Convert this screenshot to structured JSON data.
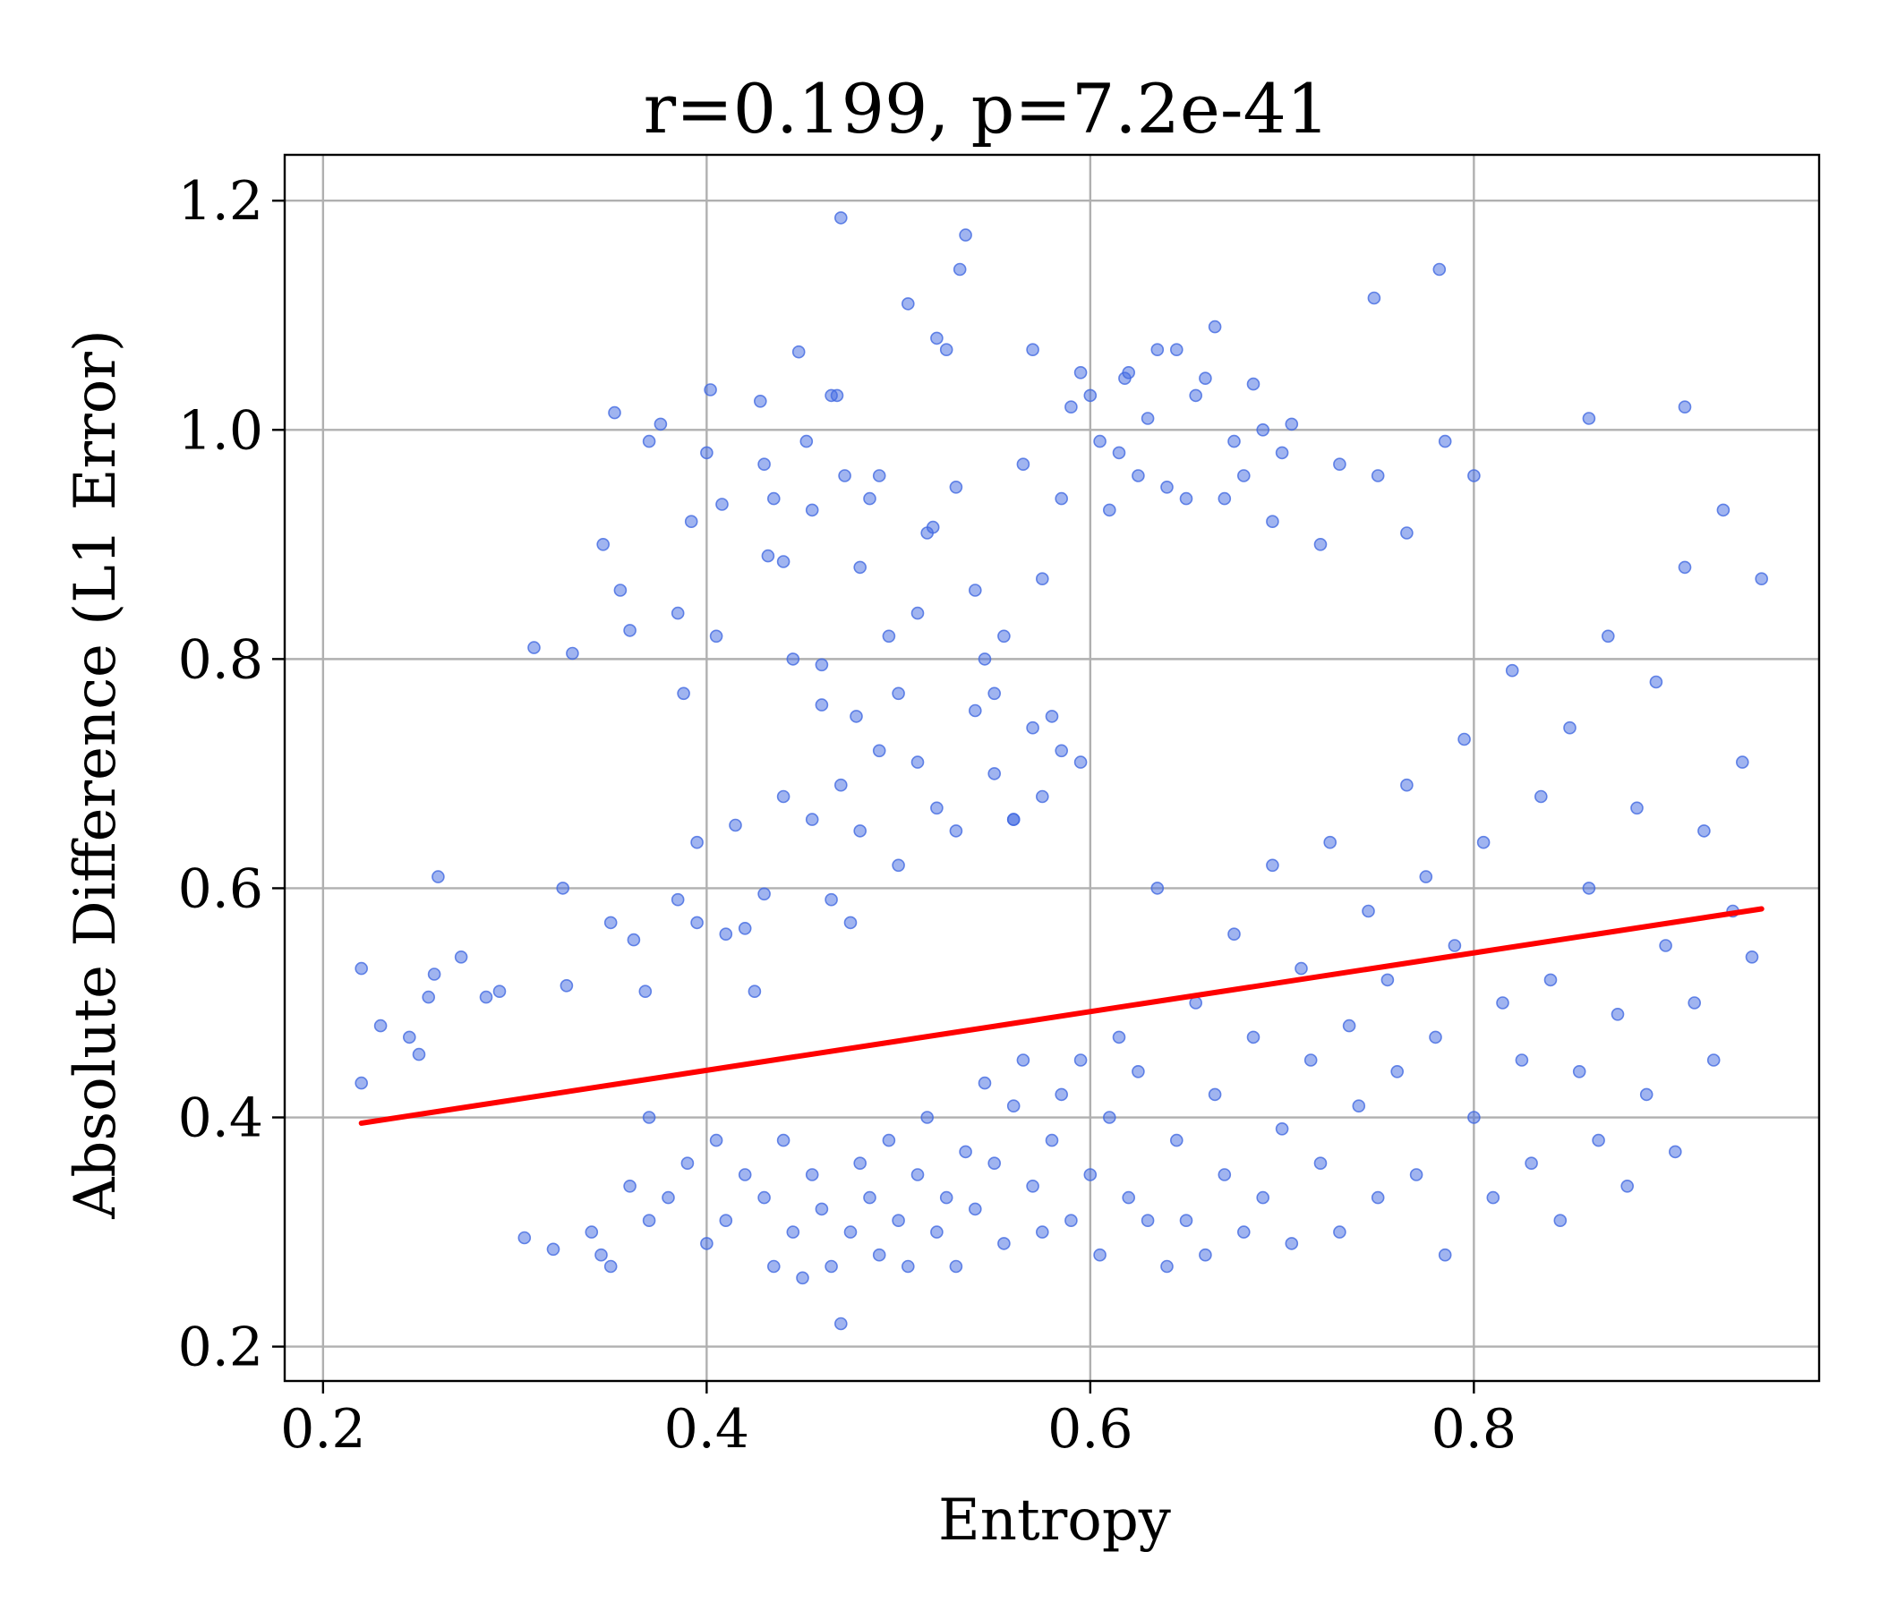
{
  "chart_data": {
    "type": "scatter",
    "title": "r=0.199, p=7.2e-41",
    "xlabel": "Entropy",
    "ylabel": "Absolute Difference (L1 Error)",
    "xlim": [
      0.18,
      0.98
    ],
    "ylim": [
      0.17,
      1.24
    ],
    "xticks": [
      0.2,
      0.4,
      0.6,
      0.8
    ],
    "xtick_labels": [
      "0.2",
      "0.4",
      "0.6",
      "0.8"
    ],
    "yticks": [
      0.2,
      0.4,
      0.6,
      0.8,
      1.0,
      1.2
    ],
    "ytick_labels": [
      "0.2",
      "0.4",
      "0.6",
      "0.8",
      "1.0",
      "1.2"
    ],
    "grid": true,
    "colors": {
      "points": "#4169e1",
      "fit_line": "#ff0000"
    },
    "fit_line": {
      "x": [
        0.22,
        0.95
      ],
      "y": [
        0.395,
        0.582
      ]
    },
    "series": [
      {
        "points": [
          [
            0.22,
            0.53
          ],
          [
            0.22,
            0.43
          ],
          [
            0.23,
            0.48
          ],
          [
            0.245,
            0.47
          ],
          [
            0.25,
            0.455
          ],
          [
            0.255,
            0.505
          ],
          [
            0.258,
            0.525
          ],
          [
            0.26,
            0.61
          ],
          [
            0.272,
            0.54
          ],
          [
            0.285,
            0.505
          ],
          [
            0.292,
            0.51
          ],
          [
            0.31,
            0.81
          ],
          [
            0.33,
            0.805
          ],
          [
            0.325,
            0.6
          ],
          [
            0.327,
            0.515
          ],
          [
            0.305,
            0.295
          ],
          [
            0.32,
            0.285
          ],
          [
            0.345,
            0.28
          ],
          [
            0.35,
            0.57
          ],
          [
            0.355,
            0.86
          ],
          [
            0.36,
            0.825
          ],
          [
            0.362,
            0.555
          ],
          [
            0.368,
            0.51
          ],
          [
            0.346,
            0.9
          ],
          [
            0.352,
            1.015
          ],
          [
            0.37,
            0.99
          ],
          [
            0.376,
            1.005
          ],
          [
            0.385,
            0.84
          ],
          [
            0.388,
            0.77
          ],
          [
            0.392,
            0.92
          ],
          [
            0.395,
            0.64
          ],
          [
            0.4,
            0.98
          ],
          [
            0.402,
            1.035
          ],
          [
            0.405,
            0.82
          ],
          [
            0.408,
            0.935
          ],
          [
            0.415,
            0.655
          ],
          [
            0.42,
            0.565
          ],
          [
            0.425,
            0.51
          ],
          [
            0.428,
            1.025
          ],
          [
            0.43,
            0.97
          ],
          [
            0.432,
            0.89
          ],
          [
            0.435,
            0.94
          ],
          [
            0.44,
            0.885
          ],
          [
            0.445,
            0.8
          ],
          [
            0.448,
            1.068
          ],
          [
            0.452,
            0.99
          ],
          [
            0.455,
            0.93
          ],
          [
            0.46,
            0.795
          ],
          [
            0.465,
            1.03
          ],
          [
            0.468,
            1.03
          ],
          [
            0.47,
            1.185
          ],
          [
            0.472,
            0.96
          ],
          [
            0.478,
            0.75
          ],
          [
            0.48,
            0.88
          ],
          [
            0.485,
            0.94
          ],
          [
            0.49,
            0.96
          ],
          [
            0.495,
            0.82
          ],
          [
            0.5,
            0.77
          ],
          [
            0.505,
            1.11
          ],
          [
            0.51,
            0.84
          ],
          [
            0.515,
            0.91
          ],
          [
            0.518,
            0.915
          ],
          [
            0.52,
            1.08
          ],
          [
            0.525,
            1.07
          ],
          [
            0.53,
            0.95
          ],
          [
            0.532,
            1.14
          ],
          [
            0.535,
            1.17
          ],
          [
            0.54,
            0.86
          ],
          [
            0.545,
            0.8
          ],
          [
            0.55,
            0.77
          ],
          [
            0.555,
            0.82
          ],
          [
            0.56,
            0.66
          ],
          [
            0.565,
            0.97
          ],
          [
            0.57,
            1.07
          ],
          [
            0.575,
            0.87
          ],
          [
            0.58,
            0.75
          ],
          [
            0.585,
            0.94
          ],
          [
            0.59,
            1.02
          ],
          [
            0.595,
            1.05
          ],
          [
            0.6,
            1.03
          ],
          [
            0.605,
            0.99
          ],
          [
            0.61,
            0.93
          ],
          [
            0.615,
            0.98
          ],
          [
            0.618,
            1.045
          ],
          [
            0.62,
            1.05
          ],
          [
            0.625,
            0.96
          ],
          [
            0.63,
            1.01
          ],
          [
            0.635,
            1.07
          ],
          [
            0.64,
            0.95
          ],
          [
            0.645,
            1.07
          ],
          [
            0.65,
            0.94
          ],
          [
            0.655,
            1.03
          ],
          [
            0.66,
            1.045
          ],
          [
            0.665,
            1.09
          ],
          [
            0.67,
            0.94
          ],
          [
            0.675,
            0.99
          ],
          [
            0.68,
            0.96
          ],
          [
            0.685,
            1.04
          ],
          [
            0.69,
            1.0
          ],
          [
            0.695,
            0.92
          ],
          [
            0.7,
            0.98
          ],
          [
            0.705,
            1.005
          ],
          [
            0.72,
            0.9
          ],
          [
            0.73,
            0.97
          ],
          [
            0.748,
            1.115
          ],
          [
            0.75,
            0.96
          ],
          [
            0.765,
            0.91
          ],
          [
            0.782,
            1.14
          ],
          [
            0.785,
            0.99
          ],
          [
            0.8,
            0.96
          ],
          [
            0.86,
            1.01
          ],
          [
            0.91,
            1.02
          ],
          [
            0.43,
            0.595
          ],
          [
            0.44,
            0.68
          ],
          [
            0.455,
            0.66
          ],
          [
            0.46,
            0.76
          ],
          [
            0.47,
            0.69
          ],
          [
            0.48,
            0.65
          ],
          [
            0.49,
            0.72
          ],
          [
            0.5,
            0.62
          ],
          [
            0.51,
            0.71
          ],
          [
            0.52,
            0.67
          ],
          [
            0.53,
            0.65
          ],
          [
            0.54,
            0.755
          ],
          [
            0.55,
            0.7
          ],
          [
            0.56,
            0.66
          ],
          [
            0.57,
            0.74
          ],
          [
            0.575,
            0.68
          ],
          [
            0.585,
            0.72
          ],
          [
            0.595,
            0.71
          ],
          [
            0.465,
            0.59
          ],
          [
            0.475,
            0.57
          ],
          [
            0.41,
            0.56
          ],
          [
            0.395,
            0.57
          ],
          [
            0.385,
            0.59
          ],
          [
            0.37,
            0.4
          ],
          [
            0.34,
            0.3
          ],
          [
            0.35,
            0.27
          ],
          [
            0.36,
            0.34
          ],
          [
            0.37,
            0.31
          ],
          [
            0.38,
            0.33
          ],
          [
            0.39,
            0.36
          ],
          [
            0.4,
            0.29
          ],
          [
            0.405,
            0.38
          ],
          [
            0.41,
            0.31
          ],
          [
            0.42,
            0.35
          ],
          [
            0.43,
            0.33
          ],
          [
            0.435,
            0.27
          ],
          [
            0.44,
            0.38
          ],
          [
            0.445,
            0.3
          ],
          [
            0.45,
            0.26
          ],
          [
            0.455,
            0.35
          ],
          [
            0.46,
            0.32
          ],
          [
            0.465,
            0.27
          ],
          [
            0.47,
            0.22
          ],
          [
            0.475,
            0.3
          ],
          [
            0.48,
            0.36
          ],
          [
            0.485,
            0.33
          ],
          [
            0.49,
            0.28
          ],
          [
            0.495,
            0.38
          ],
          [
            0.5,
            0.31
          ],
          [
            0.505,
            0.27
          ],
          [
            0.51,
            0.35
          ],
          [
            0.515,
            0.4
          ],
          [
            0.52,
            0.3
          ],
          [
            0.525,
            0.33
          ],
          [
            0.53,
            0.27
          ],
          [
            0.535,
            0.37
          ],
          [
            0.54,
            0.32
          ],
          [
            0.545,
            0.43
          ],
          [
            0.55,
            0.36
          ],
          [
            0.555,
            0.29
          ],
          [
            0.56,
            0.41
          ],
          [
            0.565,
            0.45
          ],
          [
            0.57,
            0.34
          ],
          [
            0.575,
            0.3
          ],
          [
            0.58,
            0.38
          ],
          [
            0.585,
            0.42
          ],
          [
            0.59,
            0.31
          ],
          [
            0.595,
            0.45
          ],
          [
            0.6,
            0.35
          ],
          [
            0.605,
            0.28
          ],
          [
            0.61,
            0.4
          ],
          [
            0.615,
            0.47
          ],
          [
            0.62,
            0.33
          ],
          [
            0.625,
            0.44
          ],
          [
            0.63,
            0.31
          ],
          [
            0.635,
            0.6
          ],
          [
            0.64,
            0.27
          ],
          [
            0.645,
            0.38
          ],
          [
            0.65,
            0.31
          ],
          [
            0.655,
            0.5
          ],
          [
            0.66,
            0.28
          ],
          [
            0.665,
            0.42
          ],
          [
            0.67,
            0.35
          ],
          [
            0.675,
            0.56
          ],
          [
            0.68,
            0.3
          ],
          [
            0.685,
            0.47
          ],
          [
            0.69,
            0.33
          ],
          [
            0.695,
            0.62
          ],
          [
            0.7,
            0.39
          ],
          [
            0.705,
            0.29
          ],
          [
            0.71,
            0.53
          ],
          [
            0.715,
            0.45
          ],
          [
            0.72,
            0.36
          ],
          [
            0.725,
            0.64
          ],
          [
            0.73,
            0.3
          ],
          [
            0.735,
            0.48
          ],
          [
            0.74,
            0.41
          ],
          [
            0.745,
            0.58
          ],
          [
            0.75,
            0.33
          ],
          [
            0.755,
            0.52
          ],
          [
            0.76,
            0.44
          ],
          [
            0.765,
            0.69
          ],
          [
            0.77,
            0.35
          ],
          [
            0.775,
            0.61
          ],
          [
            0.78,
            0.47
          ],
          [
            0.785,
            0.28
          ],
          [
            0.79,
            0.55
          ],
          [
            0.795,
            0.73
          ],
          [
            0.8,
            0.4
          ],
          [
            0.805,
            0.64
          ],
          [
            0.81,
            0.33
          ],
          [
            0.815,
            0.5
          ],
          [
            0.82,
            0.79
          ],
          [
            0.825,
            0.45
          ],
          [
            0.83,
            0.36
          ],
          [
            0.835,
            0.68
          ],
          [
            0.84,
            0.52
          ],
          [
            0.845,
            0.31
          ],
          [
            0.85,
            0.74
          ],
          [
            0.855,
            0.44
          ],
          [
            0.86,
            0.6
          ],
          [
            0.865,
            0.38
          ],
          [
            0.87,
            0.82
          ],
          [
            0.875,
            0.49
          ],
          [
            0.88,
            0.34
          ],
          [
            0.885,
            0.67
          ],
          [
            0.89,
            0.42
          ],
          [
            0.895,
            0.78
          ],
          [
            0.9,
            0.55
          ],
          [
            0.905,
            0.37
          ],
          [
            0.91,
            0.88
          ],
          [
            0.915,
            0.5
          ],
          [
            0.92,
            0.65
          ],
          [
            0.925,
            0.45
          ],
          [
            0.93,
            0.93
          ],
          [
            0.935,
            0.58
          ],
          [
            0.94,
            0.71
          ],
          [
            0.945,
            0.54
          ],
          [
            0.95,
            0.87
          ]
        ]
      }
    ]
  }
}
